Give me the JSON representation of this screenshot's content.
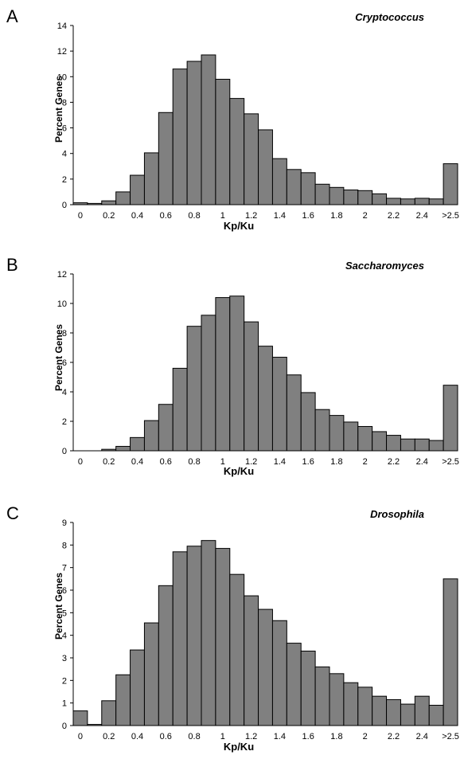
{
  "chart_data": [
    {
      "type": "bar",
      "panel_letter": "A",
      "title": "Cryptococcus",
      "xlabel": "Kp/Ku",
      "ylabel": "Percent Genes",
      "ylim": [
        0,
        14
      ],
      "yticks": [
        "0",
        "2",
        "4",
        "6",
        "8",
        "10",
        "12",
        "14"
      ],
      "xticks": [
        "0",
        "0.2",
        "0.4",
        "0.6",
        "0.8",
        "1",
        "1.2",
        "1.4",
        "1.6",
        "1.8",
        "2",
        "2.2",
        "2.4",
        ">2.5"
      ],
      "values": [
        0.15,
        0.1,
        0.3,
        1.0,
        2.3,
        4.05,
        7.2,
        10.6,
        11.2,
        11.7,
        9.8,
        8.3,
        7.1,
        5.85,
        3.6,
        2.75,
        2.5,
        1.6,
        1.35,
        1.15,
        1.1,
        0.85,
        0.5,
        0.45,
        0.5,
        0.45,
        3.2
      ]
    },
    {
      "type": "bar",
      "panel_letter": "B",
      "title": "Saccharomyces",
      "xlabel": "Kp/Ku",
      "ylabel": "Percent Genes",
      "ylim": [
        0,
        12
      ],
      "yticks": [
        "0",
        "2",
        "4",
        "6",
        "8",
        "10",
        "12"
      ],
      "xticks": [
        "0",
        "0.2",
        "0.4",
        "0.6",
        "0.8",
        "1",
        "1.2",
        "1.4",
        "1.6",
        "1.8",
        "2",
        "2.2",
        "2.4",
        ">2.5"
      ],
      "values": [
        0.0,
        0.0,
        0.1,
        0.3,
        0.9,
        2.05,
        3.15,
        5.6,
        8.45,
        9.2,
        10.4,
        10.5,
        8.75,
        7.1,
        6.35,
        5.15,
        3.95,
        2.8,
        2.4,
        1.95,
        1.65,
        1.3,
        1.05,
        0.8,
        0.8,
        0.7,
        4.45
      ]
    },
    {
      "type": "bar",
      "panel_letter": "C",
      "title": "Drosophila",
      "xlabel": "Kp/Ku",
      "ylabel": "Percent Genes",
      "ylim": [
        0,
        9
      ],
      "yticks": [
        "0",
        "1",
        "2",
        "3",
        "4",
        "5",
        "6",
        "7",
        "8",
        "9"
      ],
      "xticks": [
        "0",
        "0.2",
        "0.4",
        "0.6",
        "0.8",
        "1",
        "1.2",
        "1.4",
        "1.6",
        "1.8",
        "2",
        "2.2",
        "2.4",
        ">2.5"
      ],
      "values": [
        0.65,
        0.05,
        1.1,
        2.25,
        3.35,
        4.55,
        6.2,
        7.7,
        7.95,
        8.2,
        7.85,
        6.7,
        5.75,
        5.15,
        4.65,
        3.65,
        3.3,
        2.6,
        2.3,
        1.9,
        1.7,
        1.3,
        1.15,
        0.95,
        1.3,
        0.9,
        6.5
      ]
    }
  ]
}
